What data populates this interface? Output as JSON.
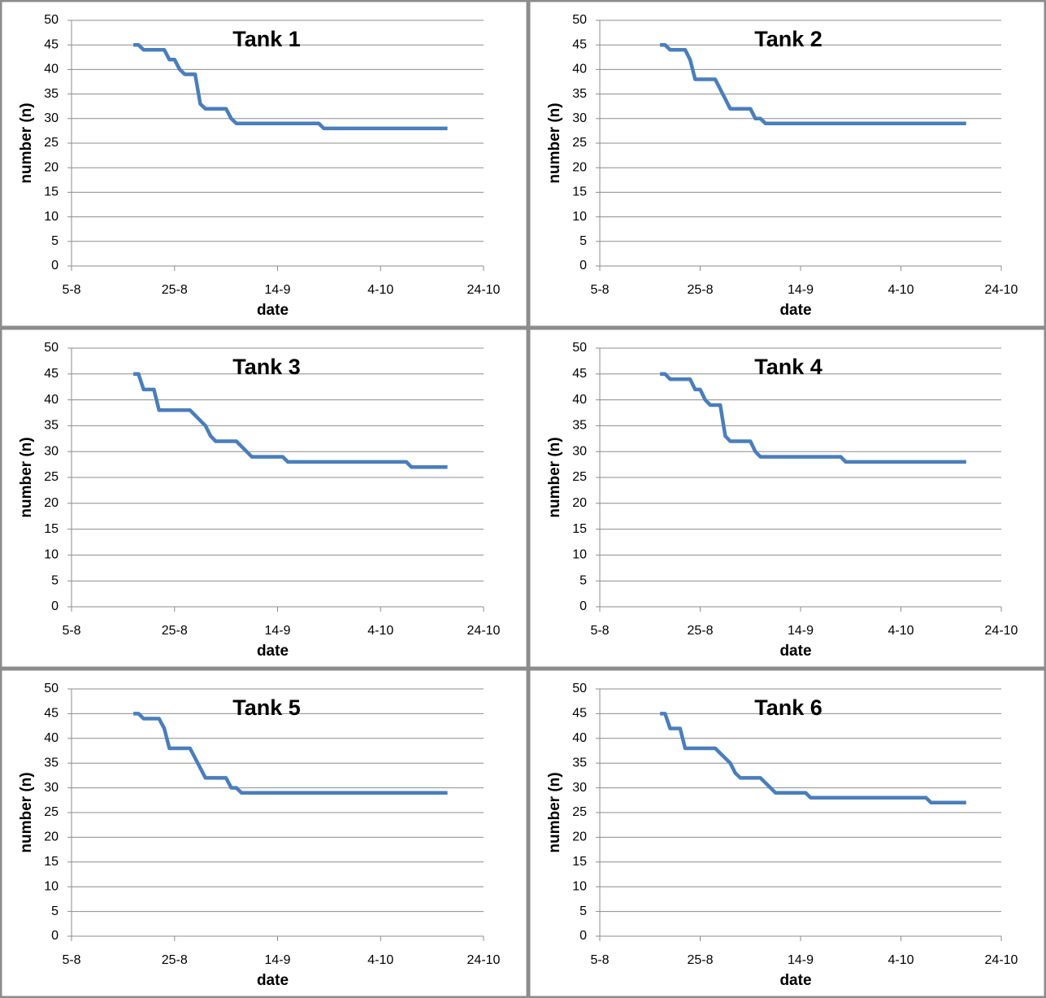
{
  "chart_data": [
    {
      "type": "line",
      "title": "Tank 1",
      "x_label": "date",
      "y_label": "number (n)",
      "x": [
        "17-8",
        "18-8",
        "19-8",
        "23-8",
        "24-8",
        "25-8",
        "26-8",
        "27-8",
        "29-8",
        "30-8",
        "31-8",
        "4-9",
        "5-9",
        "6-9",
        "22-9",
        "23-9",
        "17-10"
      ],
      "values": [
        45,
        45,
        44,
        44,
        42,
        42,
        40,
        39,
        39,
        33,
        32,
        32,
        30,
        29,
        29,
        28,
        28
      ],
      "color": "#4a7ebb",
      "xlim": [
        "5-8",
        "24-10"
      ],
      "xticks": [
        "5-8",
        "25-8",
        "14-9",
        "4-10",
        "24-10"
      ],
      "ylim": [
        0,
        50
      ],
      "yticks": [
        0,
        5,
        10,
        15,
        20,
        25,
        30,
        35,
        40,
        45,
        50
      ],
      "grid": true
    },
    {
      "type": "line",
      "title": "Tank 2",
      "x_label": "date",
      "y_label": "number (n)",
      "x": [
        "17-8",
        "18-8",
        "19-8",
        "22-8",
        "23-8",
        "24-8",
        "28-8",
        "31-8",
        "4-9",
        "5-9",
        "6-9",
        "7-9",
        "17-10"
      ],
      "values": [
        45,
        45,
        44,
        44,
        42,
        38,
        38,
        32,
        32,
        30,
        30,
        29,
        29
      ],
      "color": "#4a7ebb",
      "xlim": [
        "5-8",
        "24-10"
      ],
      "xticks": [
        "5-8",
        "25-8",
        "14-9",
        "4-10",
        "24-10"
      ],
      "ylim": [
        0,
        50
      ],
      "yticks": [
        0,
        5,
        10,
        15,
        20,
        25,
        30,
        35,
        40,
        45,
        50
      ],
      "grid": true
    },
    {
      "type": "line",
      "title": "Tank 3",
      "x_label": "date",
      "y_label": "number (n)",
      "x": [
        "17-8",
        "18-8",
        "19-8",
        "21-8",
        "22-8",
        "28-8",
        "31-8",
        "1-9",
        "2-9",
        "6-9",
        "8-9",
        "9-9",
        "15-9",
        "16-9",
        "9-10",
        "10-10",
        "17-10"
      ],
      "values": [
        45,
        45,
        42,
        42,
        38,
        38,
        35,
        33,
        32,
        32,
        30,
        29,
        29,
        28,
        28,
        27,
        27
      ],
      "color": "#4a7ebb",
      "xlim": [
        "5-8",
        "24-10"
      ],
      "xticks": [
        "5-8",
        "25-8",
        "14-9",
        "4-10",
        "24-10"
      ],
      "ylim": [
        0,
        50
      ],
      "yticks": [
        0,
        5,
        10,
        15,
        20,
        25,
        30,
        35,
        40,
        45,
        50
      ],
      "grid": true
    },
    {
      "type": "line",
      "title": "Tank 4",
      "x_label": "date",
      "y_label": "number (n)",
      "x": [
        "17-8",
        "18-8",
        "19-8",
        "23-8",
        "24-8",
        "25-8",
        "26-8",
        "27-8",
        "29-8",
        "30-8",
        "31-8",
        "4-9",
        "5-9",
        "6-9",
        "22-9",
        "23-9",
        "17-10"
      ],
      "values": [
        45,
        45,
        44,
        44,
        42,
        42,
        40,
        39,
        39,
        33,
        32,
        32,
        30,
        29,
        29,
        28,
        28
      ],
      "color": "#4a7ebb",
      "xlim": [
        "5-8",
        "24-10"
      ],
      "xticks": [
        "5-8",
        "25-8",
        "14-9",
        "4-10",
        "24-10"
      ],
      "ylim": [
        0,
        50
      ],
      "yticks": [
        0,
        5,
        10,
        15,
        20,
        25,
        30,
        35,
        40,
        45,
        50
      ],
      "grid": true
    },
    {
      "type": "line",
      "title": "Tank 5",
      "x_label": "date",
      "y_label": "number (n)",
      "x": [
        "17-8",
        "18-8",
        "19-8",
        "22-8",
        "23-8",
        "24-8",
        "28-8",
        "31-8",
        "4-9",
        "5-9",
        "6-9",
        "7-9",
        "17-10"
      ],
      "values": [
        45,
        45,
        44,
        44,
        42,
        38,
        38,
        32,
        32,
        30,
        30,
        29,
        29
      ],
      "color": "#4a7ebb",
      "xlim": [
        "5-8",
        "24-10"
      ],
      "xticks": [
        "5-8",
        "25-8",
        "14-9",
        "4-10",
        "24-10"
      ],
      "ylim": [
        0,
        50
      ],
      "yticks": [
        0,
        5,
        10,
        15,
        20,
        25,
        30,
        35,
        40,
        45,
        50
      ],
      "grid": true
    },
    {
      "type": "line",
      "title": "Tank 6",
      "x_label": "date",
      "y_label": "number (n)",
      "x": [
        "17-8",
        "18-8",
        "19-8",
        "21-8",
        "22-8",
        "28-8",
        "31-8",
        "1-9",
        "2-9",
        "6-9",
        "8-9",
        "9-9",
        "15-9",
        "16-9",
        "9-10",
        "10-10",
        "17-10"
      ],
      "values": [
        45,
        45,
        42,
        42,
        38,
        38,
        35,
        33,
        32,
        32,
        30,
        29,
        29,
        28,
        28,
        27,
        27
      ],
      "color": "#4a7ebb",
      "xlim": [
        "5-8",
        "24-10"
      ],
      "xticks": [
        "5-8",
        "25-8",
        "14-9",
        "4-10",
        "24-10"
      ],
      "ylim": [
        0,
        50
      ],
      "yticks": [
        0,
        5,
        10,
        15,
        20,
        25,
        30,
        35,
        40,
        45,
        50
      ],
      "grid": true
    }
  ]
}
